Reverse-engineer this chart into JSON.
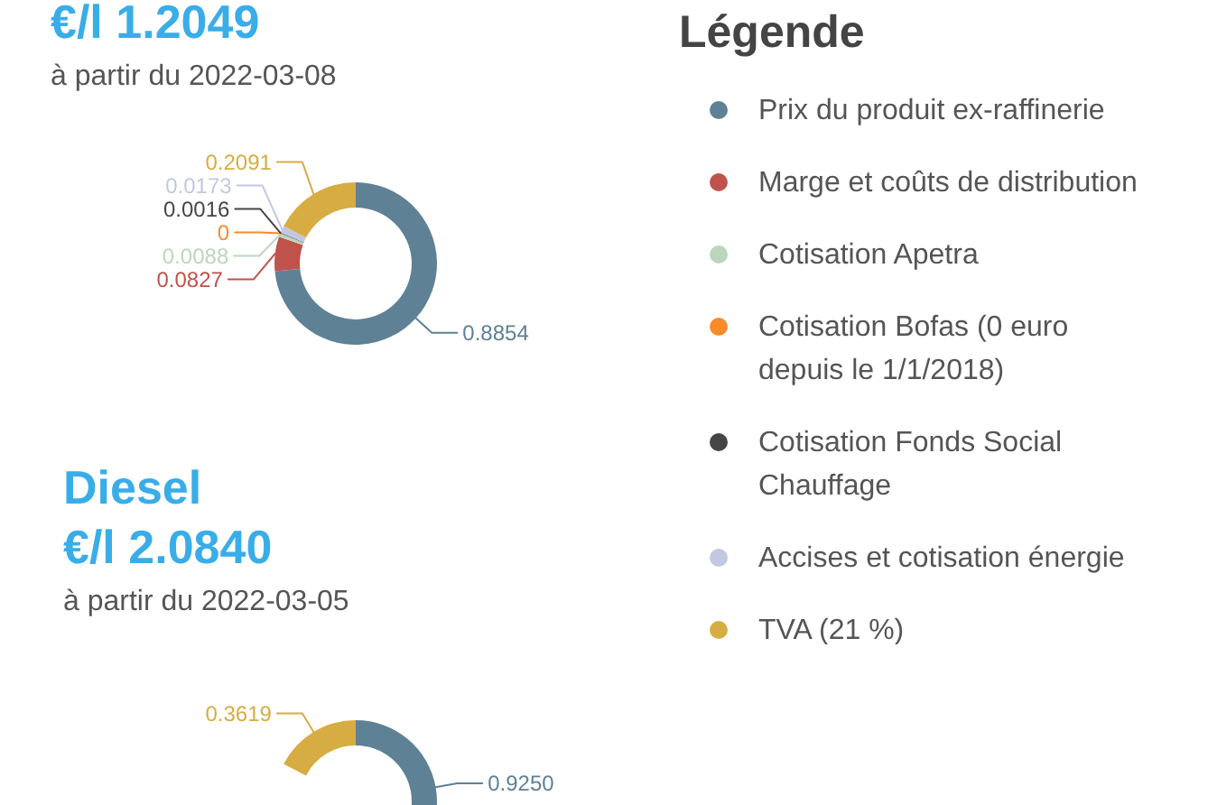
{
  "chart_data": [
    {
      "type": "donut",
      "subtitle": "€/l 1.2049",
      "annotations": [
        "à partir du 2022-03-08"
      ],
      "legend_title": "Légende",
      "legend": "right",
      "categories": [
        "Prix du produit ex-raffinerie",
        "Marge et coûts de distribution",
        "Cotisation Apetra",
        "Cotisation Bofas (0 euro depuis le 1/1/2018)",
        "Cotisation Fonds Social Chauffage",
        "Accises et cotisation énergie",
        "TVA (21 %)"
      ],
      "values": [
        0.8854,
        0.0827,
        0.0088,
        0,
        0.0016,
        0.0173,
        0.2091
      ],
      "value_labels": [
        "0.8854",
        "0.0827",
        "0.0088",
        "0",
        "0.0016",
        "0.0173",
        "0.2091"
      ],
      "colors": [
        "#5e8196",
        "#c0524c",
        "#bcd6bc",
        "#f98b2b",
        "#454545",
        "#c4c7e2",
        "#d7ac43"
      ]
    },
    {
      "type": "donut",
      "title": "Diesel",
      "subtitle": "€/l 2.0840",
      "annotations": [
        "à partir du 2022-03-05"
      ],
      "categories": [
        null,
        null,
        null,
        null,
        null,
        null,
        null
      ],
      "values": [
        0.925,
        null,
        null,
        null,
        null,
        null,
        0.3619
      ],
      "value_labels": [
        "0.9250",
        null,
        null,
        null,
        null,
        null,
        "0.3619"
      ],
      "colors": [
        "#5e8196",
        "#c0524c",
        "#bcd6bc",
        "#f98b2b",
        "#454545",
        "#c4c7e2",
        "#d7ac43"
      ]
    }
  ]
}
